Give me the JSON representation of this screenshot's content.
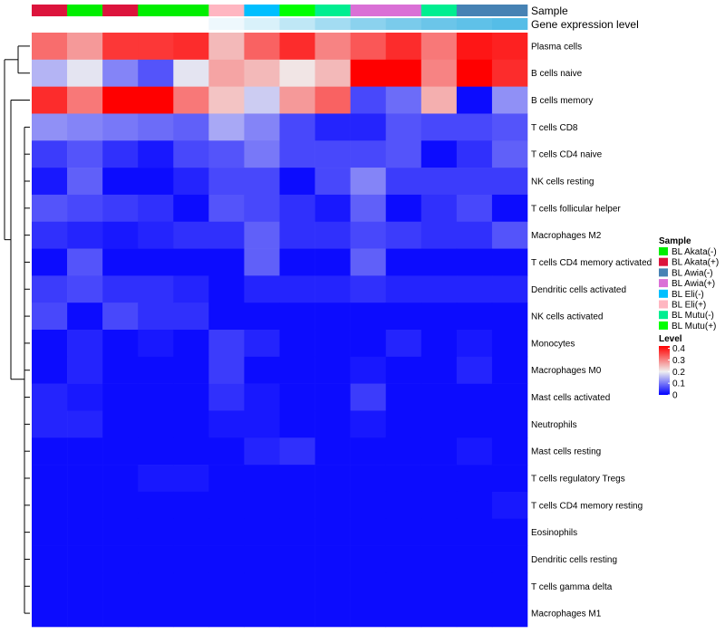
{
  "chart_data": {
    "type": "heatmap",
    "annotations": [
      {
        "key": "sample",
        "label": "Sample"
      },
      {
        "key": "gene_expression_level",
        "label": "Gene expression level"
      }
    ],
    "sample_annotation": [
      "BL Akata(+)",
      "BL Akata(-)",
      "BL Akata(+)",
      "BL Akata(-)",
      "BL Akata(-)",
      "BL Eli(+)",
      "BL Eli(-)",
      "BL Mutu(+)",
      "BL Mutu(-)",
      "BL Awia(+)",
      "BL Awia(+)",
      "BL Mutu(-)",
      "BL Awia(-)",
      "BL Awia(-)"
    ],
    "expression_annotation_colors": [
      "#ffffff",
      "#ffffff",
      "#ffffff",
      "#ffffff",
      "#ffffff",
      "#eef8fd",
      "#d9f1fa",
      "#bfe7f6",
      "#a3dcf2",
      "#8bd2ee",
      "#7acbeb",
      "#6bc5e9",
      "#5fc1e8",
      "#55bde7"
    ],
    "rows": [
      "Plasma cells",
      "B cells naive",
      "B cells memory",
      "T cells CD8",
      "T cells CD4 naive",
      "NK cells resting",
      "T cells follicular helper",
      "Macrophages M2",
      "T cells CD4 memory activated",
      "Dendritic cells activated",
      "NK cells activated",
      "Monocytes",
      "Macrophages M0",
      "Mast cells activated",
      "Neutrophils",
      "Mast cells resting",
      "T cells regulatory  Tregs",
      "T cells CD4 memory resting",
      "Eosinophils",
      "Dendritic cells resting",
      "T cells gamma delta",
      "Macrophages M1"
    ],
    "values": [
      [
        0.32,
        0.28,
        0.37,
        0.37,
        0.38,
        0.25,
        0.33,
        0.38,
        0.3,
        0.34,
        0.38,
        0.31,
        0.4,
        0.39
      ],
      [
        0.15,
        0.19,
        0.11,
        0.07,
        0.19,
        0.27,
        0.25,
        0.21,
        0.25,
        0.42,
        0.42,
        0.3,
        0.42,
        0.38
      ],
      [
        0.38,
        0.31,
        0.42,
        0.42,
        0.31,
        0.24,
        0.17,
        0.28,
        0.33,
        0.06,
        0.09,
        0.26,
        0.01,
        0.12
      ],
      [
        0.12,
        0.11,
        0.1,
        0.09,
        0.08,
        0.14,
        0.11,
        0.06,
        0.03,
        0.03,
        0.07,
        0.06,
        0.06,
        0.07
      ],
      [
        0.05,
        0.07,
        0.04,
        0.02,
        0.06,
        0.07,
        0.1,
        0.06,
        0.06,
        0.06,
        0.07,
        0.01,
        0.04,
        0.08
      ],
      [
        0.02,
        0.08,
        0.01,
        0.01,
        0.03,
        0.06,
        0.06,
        0.01,
        0.06,
        0.11,
        0.05,
        0.05,
        0.05,
        0.05
      ],
      [
        0.07,
        0.06,
        0.05,
        0.04,
        0.01,
        0.07,
        0.06,
        0.04,
        0.02,
        0.08,
        0.01,
        0.04,
        0.06,
        0.01
      ],
      [
        0.04,
        0.03,
        0.02,
        0.03,
        0.04,
        0.04,
        0.08,
        0.04,
        0.04,
        0.06,
        0.05,
        0.04,
        0.04,
        0.07
      ],
      [
        0.01,
        0.07,
        0.01,
        0.01,
        0.01,
        0.01,
        0.08,
        0.01,
        0.01,
        0.08,
        0.01,
        0.01,
        0.01,
        0.01
      ],
      [
        0.05,
        0.06,
        0.04,
        0.04,
        0.03,
        0.01,
        0.03,
        0.03,
        0.03,
        0.04,
        0.03,
        0.03,
        0.03,
        0.03
      ],
      [
        0.06,
        0.01,
        0.06,
        0.04,
        0.04,
        0.01,
        0.01,
        0.01,
        0.01,
        0.01,
        0.01,
        0.01,
        0.01,
        0.01
      ],
      [
        0.01,
        0.03,
        0.01,
        0.02,
        0.01,
        0.05,
        0.03,
        0.01,
        0.01,
        0.01,
        0.03,
        0.01,
        0.02,
        0.01
      ],
      [
        0.01,
        0.03,
        0.01,
        0.01,
        0.01,
        0.05,
        0.01,
        0.01,
        0.01,
        0.02,
        0.01,
        0.01,
        0.03,
        0.01
      ],
      [
        0.03,
        0.02,
        0.01,
        0.01,
        0.01,
        0.04,
        0.02,
        0.01,
        0.01,
        0.05,
        0.01,
        0.01,
        0.01,
        0.01
      ],
      [
        0.03,
        0.03,
        0.01,
        0.01,
        0.01,
        0.02,
        0.02,
        0.01,
        0.01,
        0.02,
        0.01,
        0.01,
        0.01,
        0.01
      ],
      [
        0.01,
        0.01,
        0.01,
        0.01,
        0.01,
        0.01,
        0.03,
        0.04,
        0.01,
        0.01,
        0.01,
        0.01,
        0.02,
        0.01
      ],
      [
        0.01,
        0.01,
        0.01,
        0.02,
        0.02,
        0.01,
        0.01,
        0.01,
        0.01,
        0.01,
        0.01,
        0.01,
        0.01,
        0.01
      ],
      [
        0.01,
        0.01,
        0.01,
        0.01,
        0.01,
        0.01,
        0.01,
        0.01,
        0.01,
        0.01,
        0.01,
        0.01,
        0.01,
        0.02
      ],
      [
        0.01,
        0.01,
        0.01,
        0.01,
        0.01,
        0.01,
        0.01,
        0.01,
        0.01,
        0.01,
        0.01,
        0.01,
        0.01,
        0.01
      ],
      [
        0.01,
        0.01,
        0.01,
        0.01,
        0.01,
        0.01,
        0.01,
        0.01,
        0.01,
        0.01,
        0.01,
        0.01,
        0.01,
        0.01
      ],
      [
        0.01,
        0.01,
        0.01,
        0.01,
        0.01,
        0.01,
        0.01,
        0.01,
        0.01,
        0.01,
        0.01,
        0.01,
        0.01,
        0.01
      ],
      [
        0.01,
        0.01,
        0.01,
        0.01,
        0.01,
        0.01,
        0.01,
        0.01,
        0.01,
        0.01,
        0.01,
        0.01,
        0.01,
        0.01
      ]
    ],
    "color_scale": {
      "title": "Level",
      "ticks": [
        "0.4",
        "0.3",
        "0.2",
        "0.1",
        "0"
      ],
      "tick_values": [
        0.4,
        0.3,
        0.2,
        0.1,
        0
      ],
      "range": [
        0,
        0.42
      ],
      "stops": [
        {
          "value": 0,
          "color": "#0000ff"
        },
        {
          "value": 0.2,
          "color": "#f0f0f0"
        },
        {
          "value": 0.42,
          "color": "#ff0000"
        }
      ]
    },
    "legend": {
      "title": "Sample",
      "placement": "right",
      "items": [
        {
          "label": "BL Akata(-)",
          "color": "#00ee00"
        },
        {
          "label": "BL Akata(+)",
          "color": "#dc143c"
        },
        {
          "label": "BL Awia(-)",
          "color": "#4682b4"
        },
        {
          "label": "BL Awia(+)",
          "color": "#da70d6"
        },
        {
          "label": "BL Eli(-)",
          "color": "#00bfff"
        },
        {
          "label": "BL Eli(+)",
          "color": "#ffb6c1"
        },
        {
          "label": "BL Mutu(-)",
          "color": "#00ee90"
        },
        {
          "label": "BL Mutu(+)",
          "color": "#00ff00"
        }
      ]
    },
    "row_dendrogram": true
  }
}
